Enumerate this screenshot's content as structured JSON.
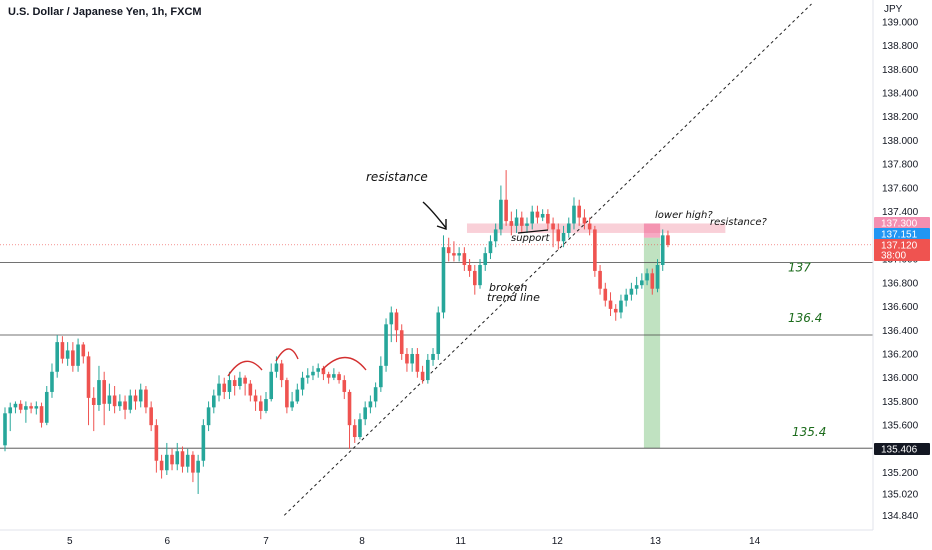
{
  "title": "U.S. Dollar / Japanese Yen, 1h, FXCM",
  "colors": {
    "up": "#26a69a",
    "down": "#ef5350",
    "resistance_zone": "#f4a9b8",
    "target_zone": "#a5d6a7",
    "price_tag_blue": "#2196f3",
    "price_tag_red": "#ef5350",
    "price_tag_pink": "#f48fb1",
    "price_tag_dark": "#131722",
    "level_text": "#1b6b1b"
  },
  "price_tags": [
    {
      "text": "137.300",
      "price": 137.3,
      "color": "#f48fb1"
    },
    {
      "text": "137.151",
      "price": 137.151,
      "color": "#2196f3"
    },
    {
      "text": "137.120",
      "price": 137.12,
      "color": "#ef5350"
    },
    {
      "text": "38:00",
      "price": 137.03,
      "color": "#ef5350"
    },
    {
      "text": "135.406",
      "price": 135.406,
      "color": "#131722"
    }
  ],
  "annotations": {
    "resistance": "resistance",
    "support": "support",
    "broken_trend_line": [
      "broken",
      "trend line"
    ],
    "lower_high": "lower high?",
    "resistance_q": "resistance?"
  },
  "levels": [
    {
      "label": "137",
      "price": 136.97
    },
    {
      "label": "136.4",
      "price": 136.36
    },
    {
      "label": "135.4",
      "price": 135.406
    }
  ],
  "chart_data": {
    "type": "candlestick",
    "title": "U.S. Dollar / Japanese Yen, 1h, FXCM",
    "y_unit": "JPY",
    "ylim": [
      134.75,
      139.15
    ],
    "y_ticks": [
      "134.840",
      "135.020",
      "135.200",
      "135.400",
      "135.600",
      "135.800",
      "136.000",
      "136.200",
      "136.400",
      "136.600",
      "136.800",
      "137.000",
      "137.200",
      "137.400",
      "137.600",
      "137.800",
      "138.000",
      "138.200",
      "138.400",
      "138.600",
      "138.800",
      "139.000"
    ],
    "x_ticks": [
      "5",
      "6",
      "7",
      "8",
      "11",
      "12",
      "13",
      "14"
    ],
    "x_tick_index": [
      12.4,
      31.1,
      50.0,
      68.4,
      87.3,
      105.8,
      124.6,
      143.6
    ],
    "grid": false,
    "current_price": 137.12,
    "resistance_zone": [
      137.3,
      137.22
    ],
    "target_zone": {
      "from_index": 122.4,
      "to_index": 125.5,
      "top": 137.18,
      "bottom": 135.406
    },
    "trend_line": {
      "from": [
        53.5,
        134.84
      ],
      "to": [
        154.5,
        139.15
      ]
    },
    "candles": [
      [
        135.43,
        135.7,
        135.75,
        135.38
      ],
      [
        135.7,
        135.75,
        135.79,
        135.55
      ],
      [
        135.75,
        135.78,
        135.8,
        135.7
      ],
      [
        135.78,
        135.73,
        135.81,
        135.7
      ],
      [
        135.73,
        135.76,
        135.8,
        135.62
      ],
      [
        135.76,
        135.74,
        135.79,
        135.7
      ],
      [
        135.74,
        135.76,
        135.8,
        135.69
      ],
      [
        135.76,
        135.62,
        135.79,
        135.58
      ],
      [
        135.62,
        135.88,
        135.93,
        135.6
      ],
      [
        135.88,
        136.05,
        136.12,
        135.83
      ],
      [
        136.05,
        136.3,
        136.36,
        136.0
      ],
      [
        136.3,
        136.16,
        136.35,
        136.12
      ],
      [
        136.16,
        136.23,
        136.3,
        136.1
      ],
      [
        136.23,
        136.1,
        136.3,
        136.05
      ],
      [
        136.1,
        136.28,
        136.33,
        136.05
      ],
      [
        136.28,
        136.18,
        136.3,
        136.12
      ],
      [
        136.18,
        135.83,
        136.22,
        135.6
      ],
      [
        135.83,
        135.77,
        135.92,
        135.55
      ],
      [
        135.77,
        135.98,
        136.1,
        135.72
      ],
      [
        135.98,
        135.78,
        136.05,
        135.6
      ],
      [
        135.78,
        135.85,
        135.95,
        135.72
      ],
      [
        135.85,
        135.76,
        135.93,
        135.7
      ],
      [
        135.76,
        135.8,
        135.86,
        135.72
      ],
      [
        135.8,
        135.73,
        135.85,
        135.65
      ],
      [
        135.73,
        135.85,
        135.9,
        135.7
      ],
      [
        135.85,
        135.8,
        135.9,
        135.73
      ],
      [
        135.8,
        135.9,
        135.95,
        135.75
      ],
      [
        135.9,
        135.75,
        135.93,
        135.7
      ],
      [
        135.75,
        135.6,
        135.8,
        135.55
      ],
      [
        135.6,
        135.3,
        135.65,
        135.2
      ],
      [
        135.3,
        135.22,
        135.35,
        135.15
      ],
      [
        135.22,
        135.35,
        135.45,
        135.18
      ],
      [
        135.35,
        135.27,
        135.4,
        135.22
      ],
      [
        135.27,
        135.38,
        135.45,
        135.22
      ],
      [
        135.38,
        135.25,
        135.42,
        135.2
      ],
      [
        135.25,
        135.35,
        135.4,
        135.2
      ],
      [
        135.35,
        135.2,
        135.38,
        135.12
      ],
      [
        135.2,
        135.3,
        135.35,
        135.02
      ],
      [
        135.3,
        135.6,
        135.65,
        135.25
      ],
      [
        135.6,
        135.75,
        135.8,
        135.55
      ],
      [
        135.75,
        135.85,
        135.9,
        135.7
      ],
      [
        135.85,
        135.95,
        136.02,
        135.8
      ],
      [
        135.95,
        135.88,
        136.0,
        135.82
      ],
      [
        135.88,
        135.98,
        136.05,
        135.82
      ],
      [
        135.98,
        135.93,
        136.02,
        135.85
      ],
      [
        135.93,
        136.0,
        136.05,
        135.9
      ],
      [
        136.0,
        135.95,
        136.02,
        135.85
      ],
      [
        135.95,
        135.85,
        135.98,
        135.8
      ],
      [
        135.85,
        135.8,
        135.9,
        135.72
      ],
      [
        135.8,
        135.72,
        135.85,
        135.65
      ],
      [
        135.72,
        135.82,
        135.88,
        135.7
      ],
      [
        135.82,
        136.05,
        136.12,
        135.8
      ],
      [
        136.05,
        136.12,
        136.18,
        136.0
      ],
      [
        136.12,
        135.98,
        136.15,
        135.92
      ],
      [
        135.98,
        135.75,
        136.0,
        135.7
      ],
      [
        135.75,
        135.8,
        135.88,
        135.72
      ],
      [
        135.8,
        135.9,
        135.95,
        135.78
      ],
      [
        135.9,
        136.0,
        136.05,
        135.85
      ],
      [
        136.0,
        136.02,
        136.08,
        135.95
      ],
      [
        136.02,
        136.05,
        136.1,
        135.98
      ],
      [
        136.05,
        136.08,
        136.12,
        136.0
      ],
      [
        136.08,
        136.03,
        136.1,
        135.98
      ],
      [
        136.03,
        136.0,
        136.05,
        135.95
      ],
      [
        136.0,
        136.03,
        136.08,
        135.98
      ],
      [
        136.03,
        135.98,
        136.05,
        135.95
      ],
      [
        135.98,
        135.88,
        136.02,
        135.82
      ],
      [
        135.88,
        135.6,
        135.9,
        135.4
      ],
      [
        135.6,
        135.5,
        135.65,
        135.45
      ],
      [
        135.5,
        135.65,
        135.7,
        135.48
      ],
      [
        135.65,
        135.75,
        135.8,
        135.6
      ],
      [
        135.75,
        135.8,
        135.85,
        135.7
      ],
      [
        135.8,
        135.92,
        135.96,
        135.75
      ],
      [
        135.92,
        136.1,
        136.18,
        135.88
      ],
      [
        136.1,
        136.45,
        136.5,
        136.05
      ],
      [
        136.45,
        136.55,
        136.6,
        136.3
      ],
      [
        136.55,
        136.4,
        136.58,
        136.3
      ],
      [
        136.4,
        136.2,
        136.45,
        136.15
      ],
      [
        136.2,
        136.12,
        136.25,
        136.05
      ],
      [
        136.12,
        136.2,
        136.25,
        136.05
      ],
      [
        136.2,
        136.05,
        136.25,
        136.0
      ],
      [
        136.05,
        135.98,
        136.1,
        135.95
      ],
      [
        135.98,
        136.15,
        136.2,
        135.95
      ],
      [
        136.15,
        136.2,
        136.25,
        136.1
      ],
      [
        136.2,
        136.55,
        136.6,
        136.15
      ],
      [
        136.55,
        137.1,
        137.2,
        136.5
      ],
      [
        137.1,
        137.05,
        137.18,
        136.98
      ],
      [
        137.05,
        137.03,
        137.15,
        136.98
      ],
      [
        137.03,
        137.05,
        137.1,
        136.98
      ],
      [
        137.05,
        136.95,
        137.1,
        136.9
      ],
      [
        136.95,
        136.9,
        137.0,
        136.85
      ],
      [
        136.9,
        136.78,
        136.95,
        136.7
      ],
      [
        136.78,
        136.95,
        137.0,
        136.75
      ],
      [
        136.95,
        137.05,
        137.1,
        136.9
      ],
      [
        137.05,
        137.15,
        137.2,
        137.0
      ],
      [
        137.15,
        137.25,
        137.3,
        137.1
      ],
      [
        137.25,
        137.5,
        137.62,
        137.2
      ],
      [
        137.5,
        137.32,
        137.75,
        137.28
      ],
      [
        137.32,
        137.28,
        137.4,
        137.2
      ],
      [
        137.28,
        137.35,
        137.42,
        137.22
      ],
      [
        137.35,
        137.28,
        137.4,
        137.22
      ],
      [
        137.28,
        137.3,
        137.35,
        137.22
      ],
      [
        137.3,
        137.4,
        137.45,
        137.25
      ],
      [
        137.4,
        137.35,
        137.45,
        137.3
      ],
      [
        137.35,
        137.38,
        137.42,
        137.32
      ],
      [
        137.38,
        137.3,
        137.42,
        137.25
      ],
      [
        137.3,
        137.25,
        137.35,
        137.1
      ],
      [
        137.25,
        137.15,
        137.3,
        137.08
      ],
      [
        137.15,
        137.22,
        137.28,
        137.1
      ],
      [
        137.22,
        137.3,
        137.35,
        137.18
      ],
      [
        137.3,
        137.45,
        137.52,
        137.25
      ],
      [
        137.45,
        137.35,
        137.5,
        137.28
      ],
      [
        137.35,
        137.3,
        137.42,
        137.25
      ],
      [
        137.3,
        137.25,
        137.35,
        137.2
      ],
      [
        137.25,
        136.9,
        137.28,
        136.85
      ],
      [
        136.9,
        136.75,
        136.95,
        136.7
      ],
      [
        136.75,
        136.65,
        136.8,
        136.6
      ],
      [
        136.65,
        136.58,
        136.72,
        136.52
      ],
      [
        136.58,
        136.55,
        136.62,
        136.48
      ],
      [
        136.55,
        136.65,
        136.7,
        136.5
      ],
      [
        136.65,
        136.7,
        136.75,
        136.6
      ],
      [
        136.7,
        136.75,
        136.8,
        136.65
      ],
      [
        136.75,
        136.78,
        136.85,
        136.7
      ],
      [
        136.78,
        136.82,
        136.88,
        136.75
      ],
      [
        136.82,
        136.88,
        136.92,
        136.78
      ],
      [
        136.88,
        136.75,
        136.92,
        136.7
      ],
      [
        136.75,
        136.95,
        137.0,
        136.72
      ],
      [
        136.95,
        137.2,
        137.25,
        136.9
      ],
      [
        137.2,
        137.12,
        137.24,
        137.1
      ]
    ]
  }
}
